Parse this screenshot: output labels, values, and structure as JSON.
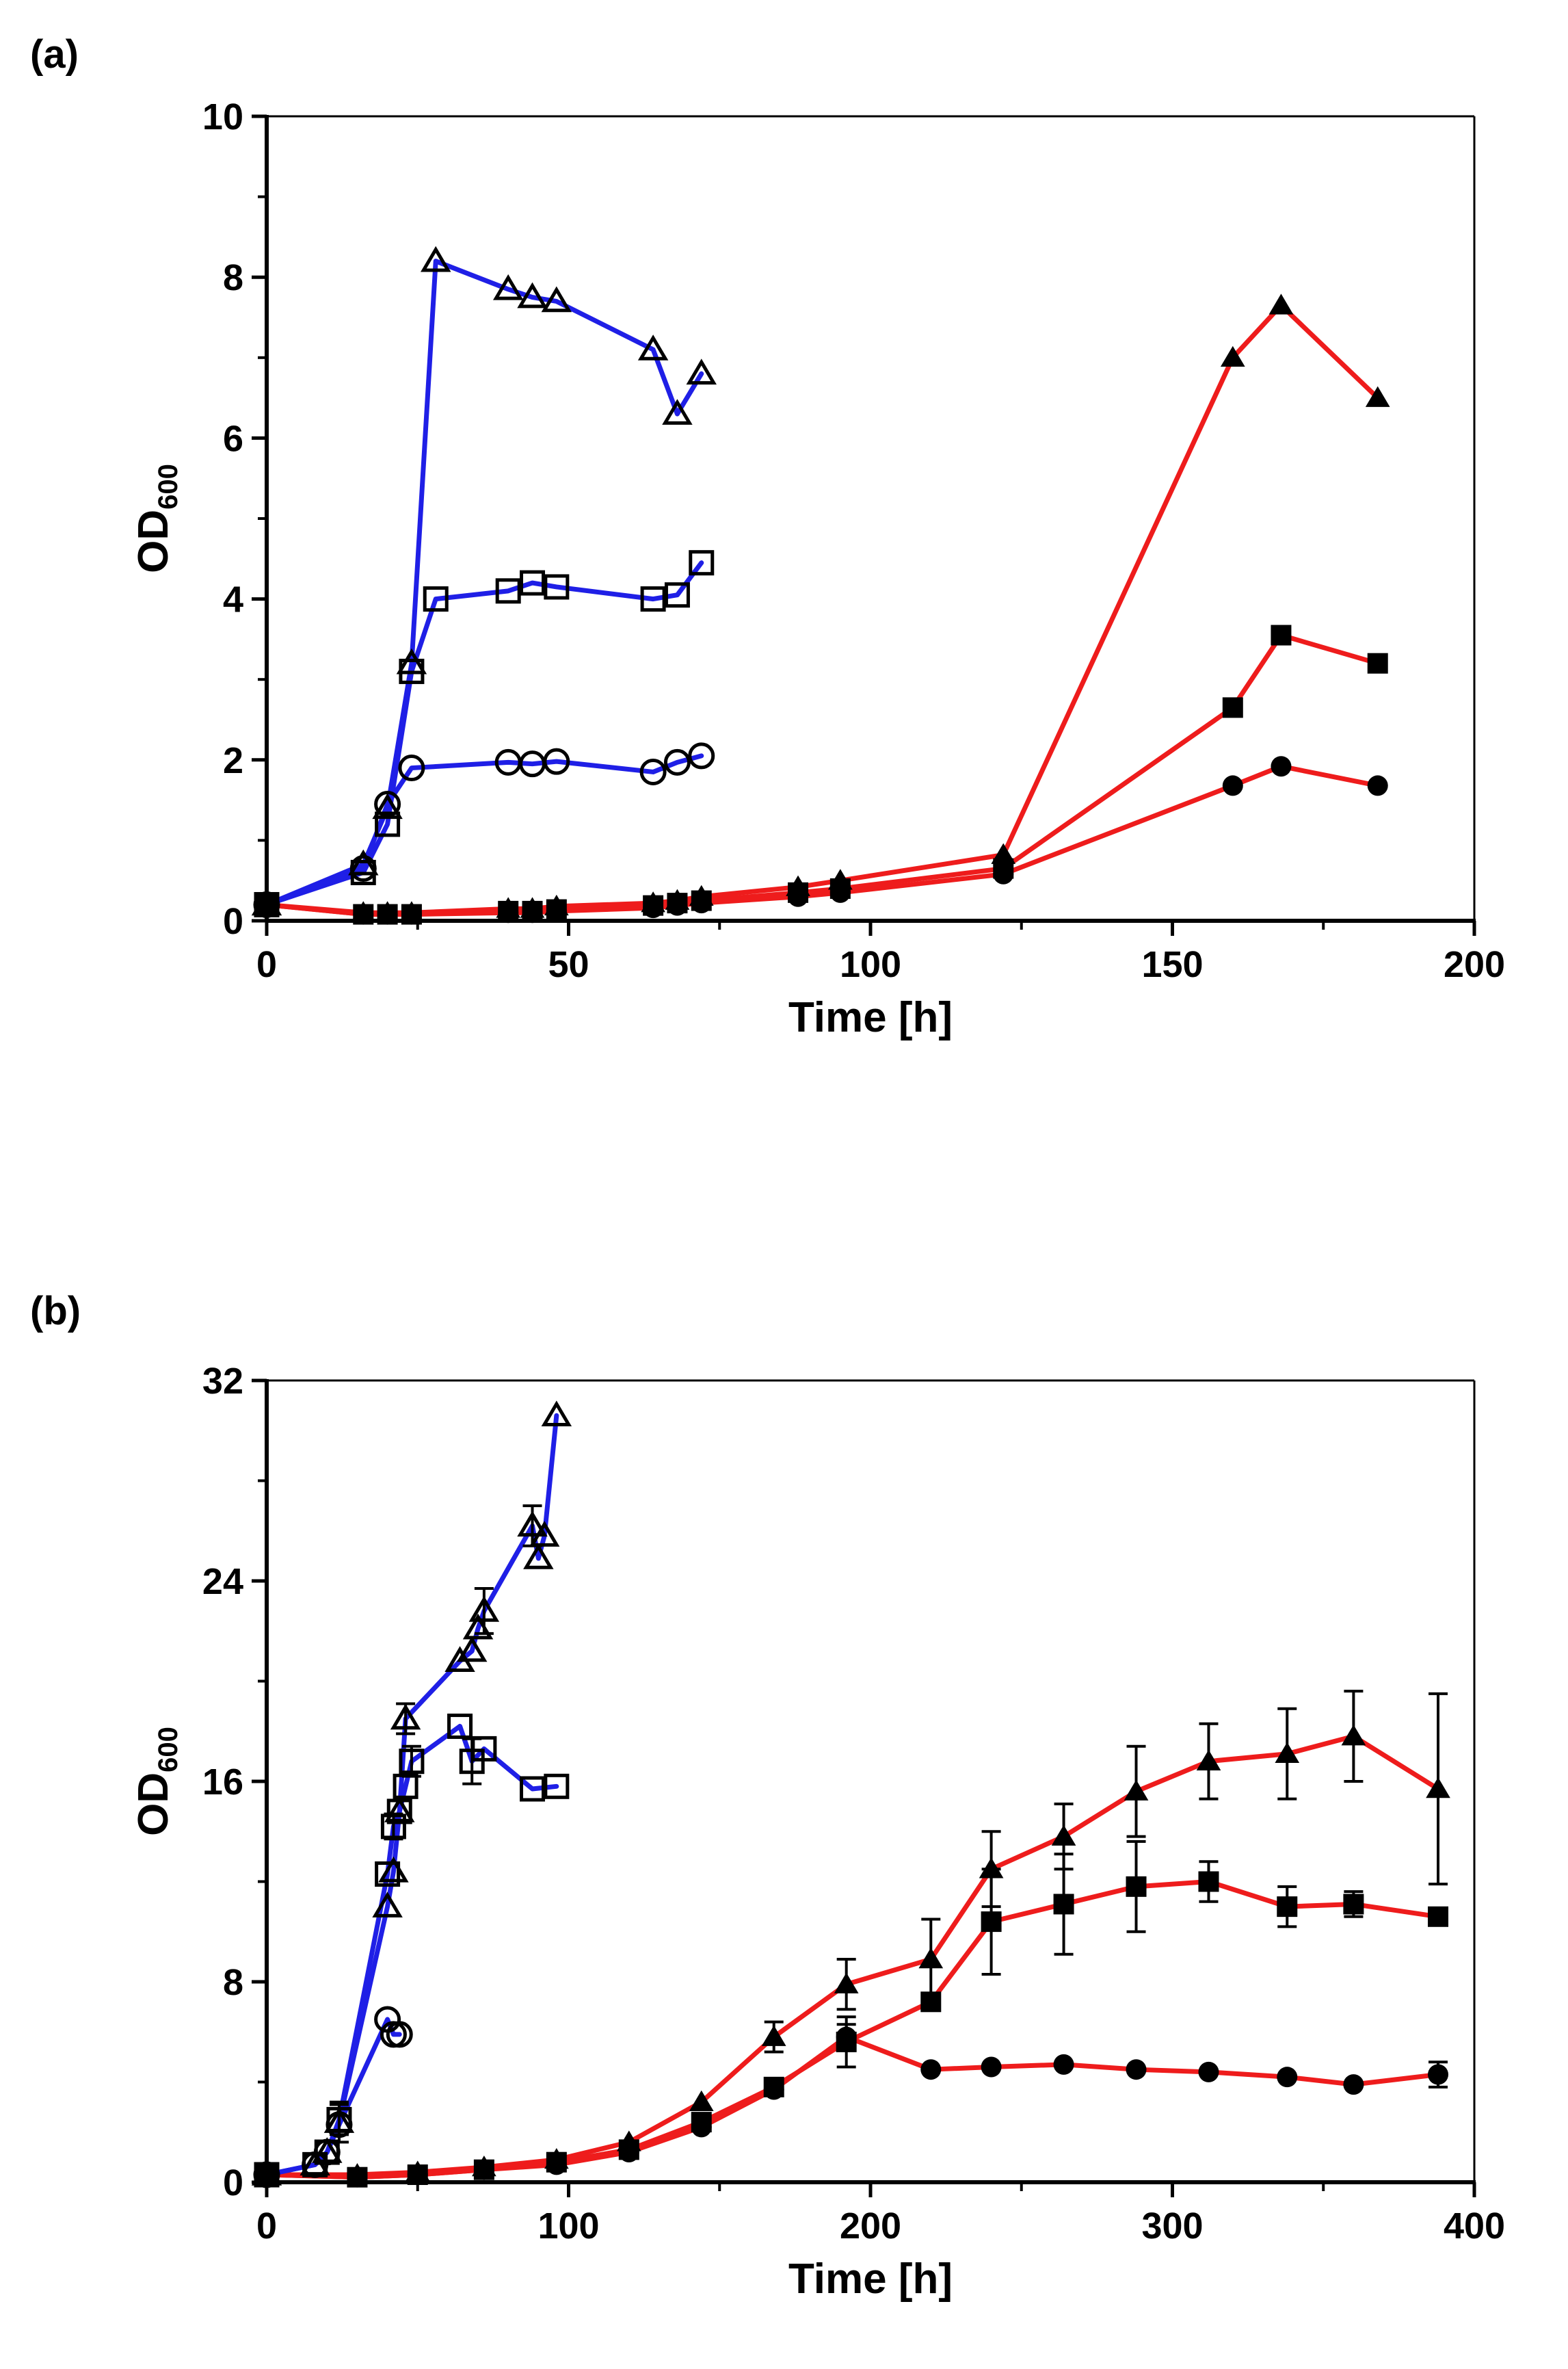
{
  "panels": [
    {
      "label": "(a)"
    },
    {
      "label": "(b)"
    }
  ],
  "chart_data": [
    {
      "type": "line",
      "panel": "(a)",
      "xlabel": "Time [h]",
      "ylabel": "OD",
      "ylabel_sub": "600",
      "xlim": [
        0,
        200
      ],
      "ylim": [
        0,
        10
      ],
      "xticks": [
        0,
        50,
        100,
        150,
        200
      ],
      "xtick_labels": [
        "0",
        "50",
        "100",
        "150",
        "200"
      ],
      "yticks": [
        0,
        2,
        4,
        6,
        8,
        10
      ],
      "ytick_labels": [
        "0",
        "2",
        "4",
        "6",
        "8",
        "10"
      ],
      "series": [
        {
          "name": "blue-open-triangle",
          "color": "#1f1fe6",
          "marker": "triangle",
          "filled": false,
          "x": [
            0,
            16,
            20,
            24,
            28,
            40,
            44,
            48,
            64,
            68,
            72
          ],
          "y": [
            0.2,
            0.7,
            1.4,
            3.2,
            8.2,
            7.85,
            7.75,
            7.7,
            7.1,
            6.3,
            6.8
          ]
        },
        {
          "name": "blue-open-square",
          "color": "#1f1fe6",
          "marker": "square",
          "filled": false,
          "x": [
            0,
            16,
            20,
            24,
            28,
            40,
            44,
            48,
            64,
            68,
            72
          ],
          "y": [
            0.2,
            0.6,
            1.2,
            3.1,
            4.0,
            4.1,
            4.2,
            4.15,
            4.0,
            4.05,
            4.45
          ]
        },
        {
          "name": "blue-open-circle",
          "color": "#1f1fe6",
          "marker": "circle",
          "filled": false,
          "x": [
            0,
            16,
            20,
            24,
            40,
            44,
            48,
            64,
            68,
            72
          ],
          "y": [
            0.2,
            0.65,
            1.45,
            1.9,
            1.97,
            1.95,
            1.98,
            1.85,
            1.97,
            2.05
          ]
        },
        {
          "name": "red-filled-triangle",
          "color": "#ee1c1c",
          "marker": "triangle",
          "filled": true,
          "x": [
            0,
            16,
            20,
            24,
            40,
            44,
            48,
            64,
            68,
            72,
            88,
            95,
            122,
            160,
            168,
            184
          ],
          "y": [
            0.2,
            0.1,
            0.1,
            0.1,
            0.15,
            0.15,
            0.18,
            0.22,
            0.25,
            0.3,
            0.42,
            0.5,
            0.82,
            7.0,
            7.65,
            6.5
          ]
        },
        {
          "name": "red-filled-square",
          "color": "#ee1c1c",
          "marker": "square",
          "filled": true,
          "x": [
            0,
            16,
            20,
            24,
            40,
            44,
            48,
            64,
            68,
            72,
            88,
            95,
            122,
            160,
            168,
            184
          ],
          "y": [
            0.2,
            0.08,
            0.08,
            0.08,
            0.12,
            0.12,
            0.14,
            0.19,
            0.22,
            0.25,
            0.35,
            0.4,
            0.65,
            2.65,
            3.55,
            3.2
          ]
        },
        {
          "name": "red-filled-circle",
          "color": "#ee1c1c",
          "marker": "circle",
          "filled": true,
          "x": [
            0,
            16,
            20,
            24,
            40,
            44,
            48,
            64,
            68,
            72,
            88,
            95,
            122,
            160,
            168,
            184
          ],
          "y": [
            0.2,
            0.08,
            0.08,
            0.08,
            0.1,
            0.1,
            0.12,
            0.16,
            0.19,
            0.22,
            0.3,
            0.35,
            0.58,
            1.68,
            1.92,
            1.68
          ]
        }
      ]
    },
    {
      "type": "line",
      "panel": "(b)",
      "xlabel": "Time [h]",
      "ylabel": "OD",
      "ylabel_sub": "600",
      "xlim": [
        0,
        400
      ],
      "ylim": [
        0,
        32
      ],
      "xticks": [
        0,
        100,
        200,
        300,
        400
      ],
      "xtick_labels": [
        "0",
        "100",
        "200",
        "300",
        "400"
      ],
      "yticks": [
        0,
        8,
        16,
        24,
        32
      ],
      "ytick_labels": [
        "0",
        "8",
        "16",
        "24",
        "32"
      ],
      "series": [
        {
          "name": "blue-open-triangle",
          "color": "#1f1fe6",
          "marker": "triangle",
          "filled": false,
          "x": [
            0,
            16,
            20,
            24,
            40,
            42,
            44,
            46,
            64,
            68,
            70,
            72,
            88,
            90,
            92,
            96
          ],
          "y": [
            0.3,
            0.7,
            1.2,
            2.4,
            11.0,
            12.4,
            14.8,
            18.5,
            20.8,
            21.2,
            22.1,
            22.8,
            26.2,
            24.9,
            25.8,
            30.6
          ],
          "err": [
            0,
            0,
            0,
            0.8,
            0,
            0,
            0,
            0.6,
            0,
            0,
            0,
            0.9,
            0.8,
            0,
            0,
            0
          ]
        },
        {
          "name": "blue-open-square",
          "color": "#1f1fe6",
          "marker": "square",
          "filled": false,
          "x": [
            0,
            16,
            20,
            24,
            40,
            42,
            44,
            46,
            48,
            64,
            68,
            72,
            88,
            96
          ],
          "y": [
            0.3,
            0.7,
            1.2,
            2.5,
            12.3,
            14.2,
            14.8,
            15.8,
            16.8,
            18.2,
            16.8,
            17.3,
            15.7,
            15.8
          ],
          "err": [
            0,
            0,
            0,
            0.6,
            0,
            0.5,
            0,
            0,
            0.6,
            0,
            0.9,
            0,
            0,
            0
          ]
        },
        {
          "name": "blue-open-circle",
          "color": "#1f1fe6",
          "marker": "circle",
          "filled": false,
          "x": [
            0,
            16,
            20,
            24,
            40,
            42,
            44
          ],
          "y": [
            0.3,
            0.7,
            1.2,
            2.3,
            6.5,
            5.9,
            5.9
          ],
          "err": [
            0,
            0,
            0,
            0,
            0,
            0,
            0
          ]
        },
        {
          "name": "red-filled-triangle",
          "color": "#ee1c1c",
          "marker": "triangle",
          "filled": true,
          "x": [
            0,
            30,
            50,
            72,
            96,
            120,
            144,
            168,
            192,
            220,
            240,
            264,
            288,
            312,
            338,
            360,
            388
          ],
          "y": [
            0.3,
            0.3,
            0.4,
            0.6,
            0.9,
            1.6,
            3.2,
            5.8,
            7.9,
            8.9,
            12.5,
            13.8,
            15.6,
            16.8,
            17.1,
            17.8,
            15.7
          ],
          "err": [
            0,
            0,
            0,
            0,
            0,
            0,
            0,
            0.6,
            1.0,
            1.6,
            1.5,
            1.3,
            1.8,
            1.5,
            1.8,
            1.8,
            3.8
          ]
        },
        {
          "name": "red-filled-square",
          "color": "#ee1c1c",
          "marker": "square",
          "filled": true,
          "x": [
            0,
            30,
            50,
            72,
            96,
            120,
            144,
            168,
            192,
            220,
            240,
            264,
            288,
            312,
            338,
            360,
            388
          ],
          "y": [
            0.3,
            0.2,
            0.3,
            0.5,
            0.8,
            1.3,
            2.4,
            3.8,
            5.6,
            7.2,
            10.4,
            11.1,
            11.8,
            12.0,
            11.0,
            11.1,
            10.6
          ],
          "err": [
            0,
            0,
            0,
            0,
            0,
            0,
            0,
            0,
            1.0,
            0,
            2.1,
            2.0,
            1.8,
            0.8,
            0.8,
            0.5,
            0
          ]
        },
        {
          "name": "red-filled-circle",
          "color": "#ee1c1c",
          "marker": "circle",
          "filled": true,
          "x": [
            0,
            30,
            50,
            72,
            96,
            120,
            144,
            168,
            192,
            220,
            240,
            264,
            288,
            312,
            338,
            360,
            388
          ],
          "y": [
            0.3,
            0.2,
            0.3,
            0.5,
            0.7,
            1.2,
            2.2,
            3.7,
            5.8,
            4.5,
            4.6,
            4.7,
            4.5,
            4.4,
            4.2,
            3.9,
            4.3
          ],
          "err": [
            0,
            0,
            0,
            0,
            0,
            0,
            0,
            0,
            0.5,
            0,
            0,
            0,
            0,
            0,
            0,
            0,
            0.5
          ]
        }
      ]
    }
  ]
}
